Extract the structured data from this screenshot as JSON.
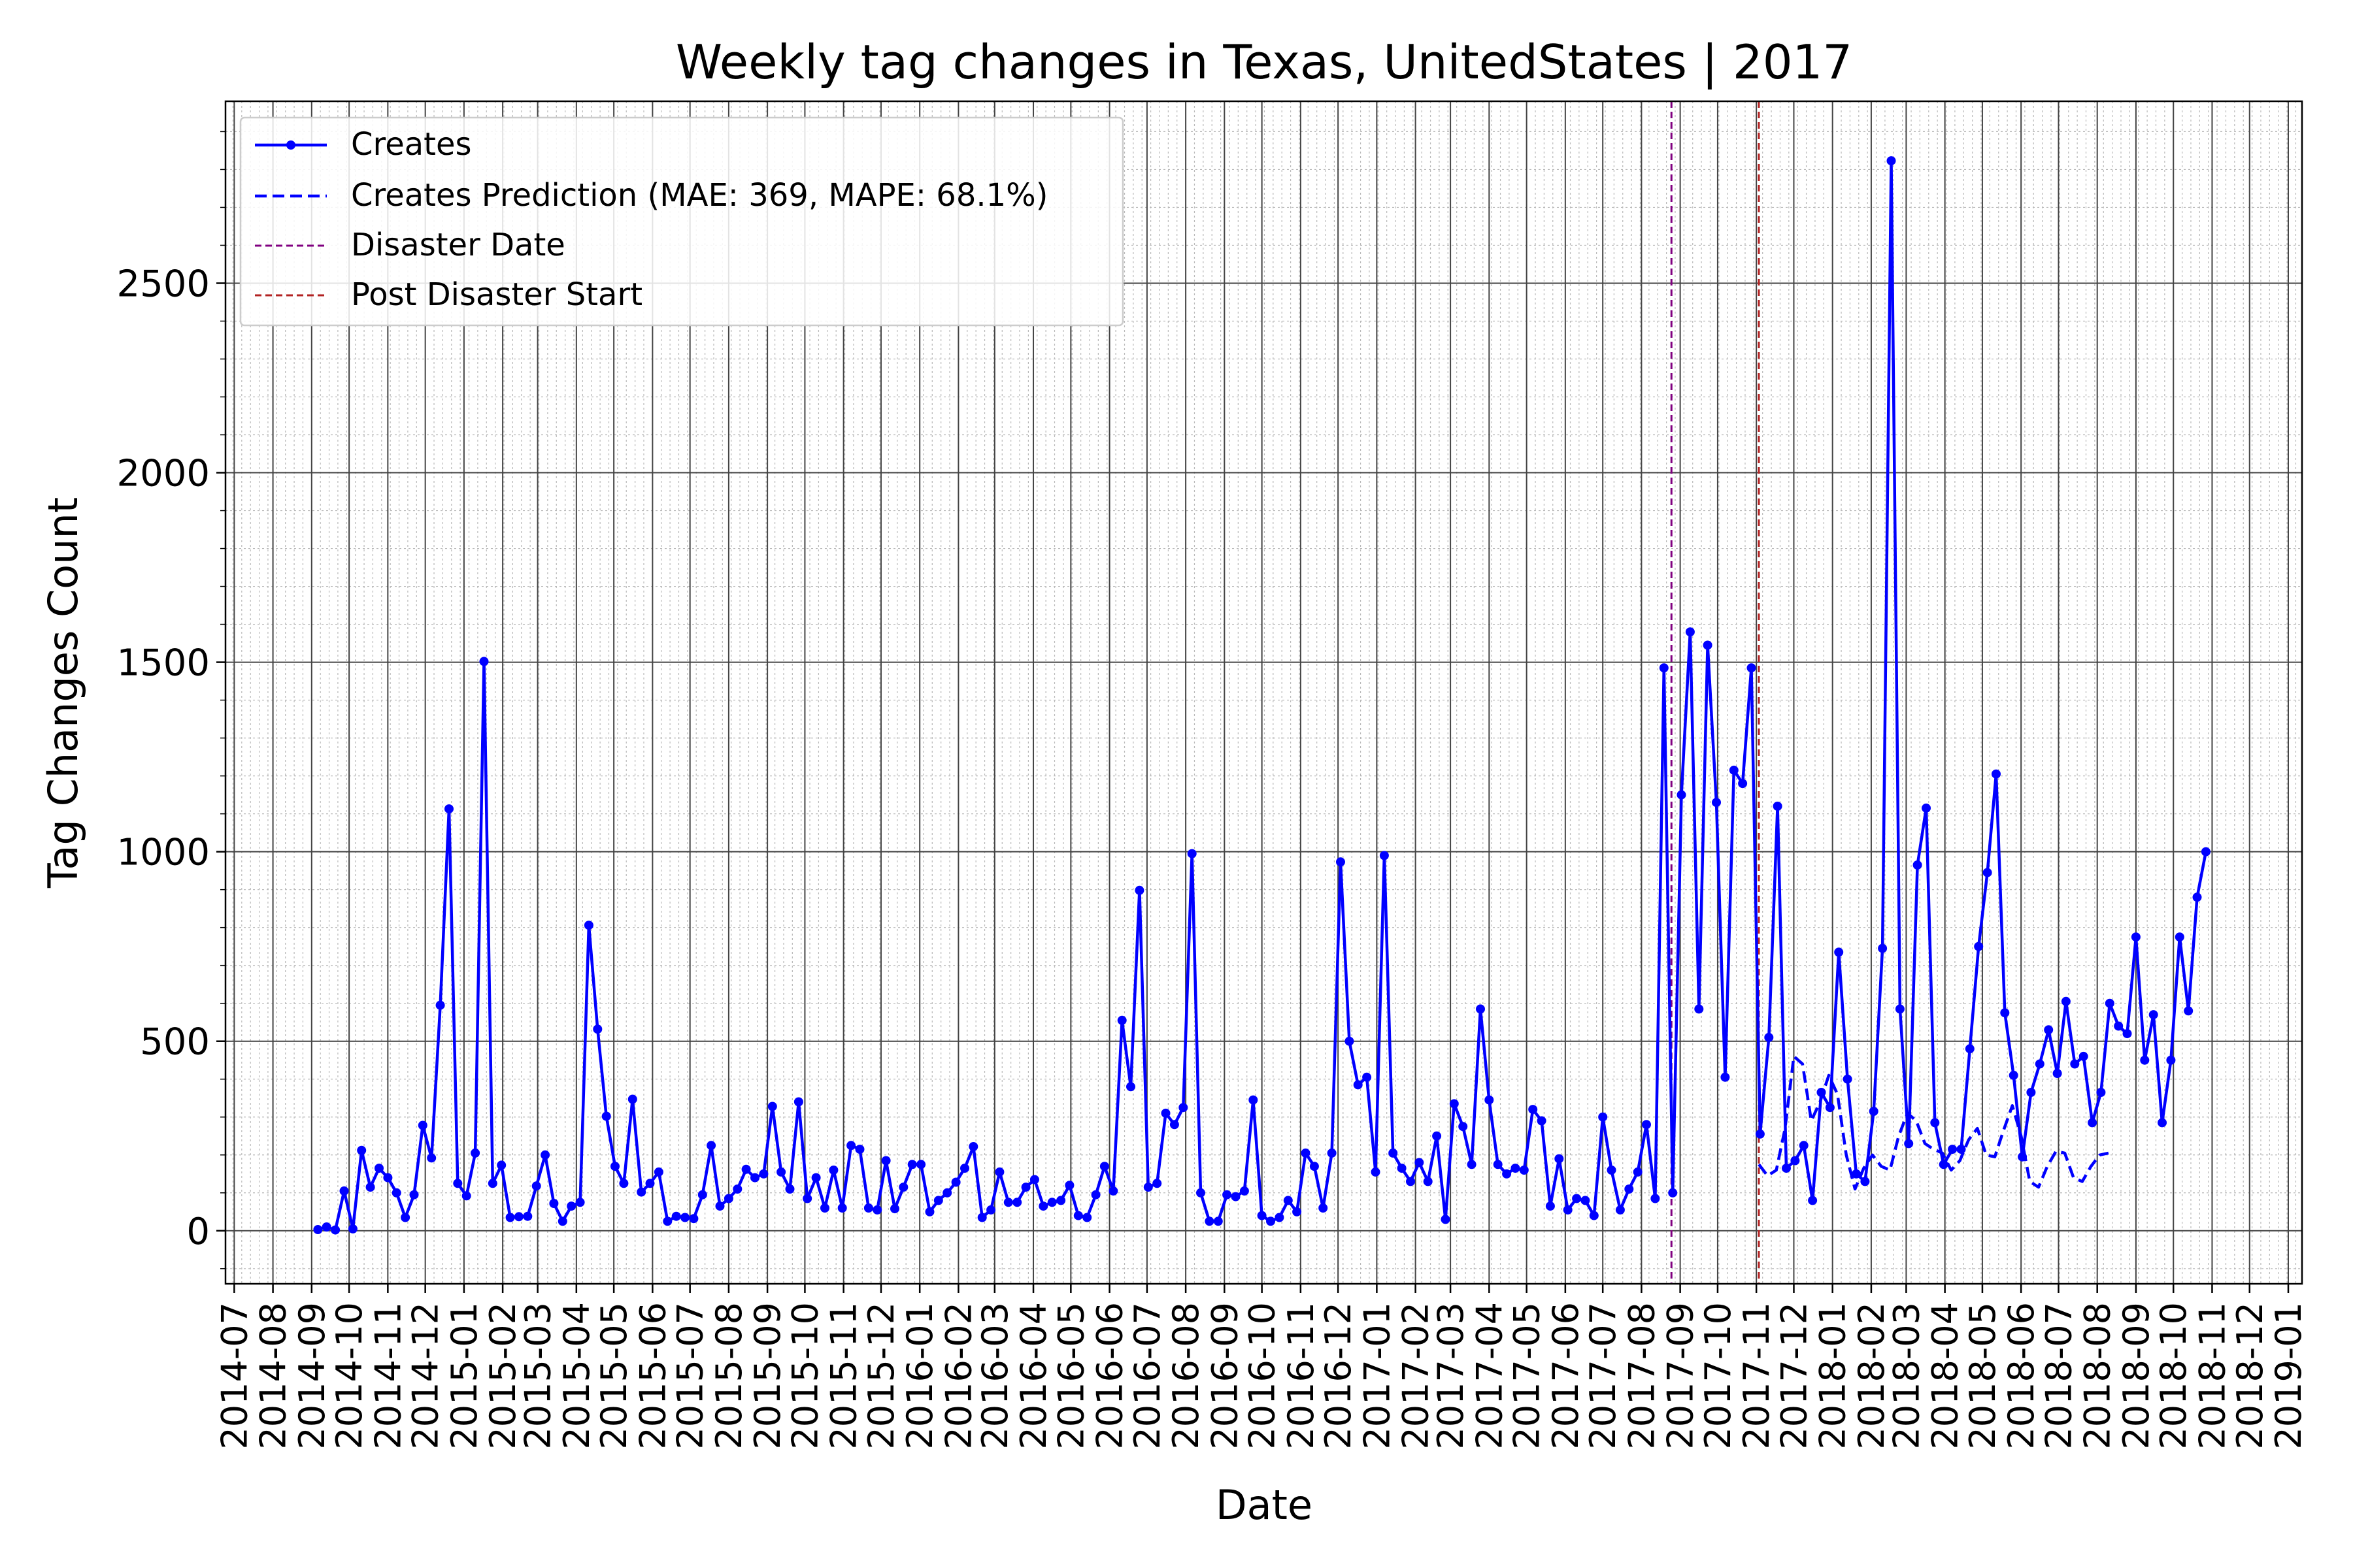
{
  "chart_data": {
    "type": "line",
    "title": "Weekly tag changes in Texas, UnitedStates | 2017",
    "xlabel": "Date",
    "ylabel": "Tag Changes Count",
    "xlim": [
      "2014-06-24",
      "2019-01-12"
    ],
    "ylim": [
      -140,
      2980
    ],
    "yticks": [
      0,
      500,
      1000,
      1500,
      2000,
      2500
    ],
    "xtick_labels": [
      "2014-07",
      "2014-08",
      "2014-09",
      "2014-10",
      "2014-11",
      "2014-12",
      "2015-01",
      "2015-02",
      "2015-03",
      "2015-04",
      "2015-05",
      "2015-06",
      "2015-07",
      "2015-08",
      "2015-09",
      "2015-10",
      "2015-11",
      "2015-12",
      "2016-01",
      "2016-02",
      "2016-03",
      "2016-04",
      "2016-05",
      "2016-06",
      "2016-07",
      "2016-08",
      "2016-09",
      "2016-10",
      "2016-11",
      "2016-12",
      "2017-01",
      "2017-02",
      "2017-03",
      "2017-04",
      "2017-05",
      "2017-06",
      "2017-07",
      "2017-08",
      "2017-09",
      "2017-10",
      "2017-11",
      "2017-12",
      "2018-01",
      "2018-02",
      "2018-03",
      "2018-04",
      "2018-05",
      "2018-06",
      "2018-07",
      "2018-08",
      "2018-09",
      "2018-10",
      "2018-11",
      "2018-12",
      "2019-01"
    ],
    "grid": true,
    "legend_position": "top-left",
    "colors": {
      "creates": "#0000ff",
      "prediction": "#0000ff",
      "disaster": "#800080",
      "post_disaster": "#b22222"
    },
    "vlines": [
      {
        "name": "Disaster Date",
        "date": "2017-08-25"
      },
      {
        "name": "Post Disaster Start",
        "date": "2017-11-03"
      }
    ],
    "series": [
      {
        "name": "Creates",
        "style": "solid-with-markers",
        "x_start": "2014-09-06",
        "x_step_days": 7,
        "y": [
          3,
          10,
          2,
          105,
          5,
          212,
          115,
          165,
          140,
          100,
          35,
          95,
          278,
          192,
          595,
          1113,
          125,
          92,
          205,
          1502,
          125,
          173,
          35,
          37,
          38,
          118,
          200,
          72,
          25,
          65,
          75,
          806,
          532,
          302,
          170,
          125,
          347,
          102,
          125,
          155,
          25,
          38,
          35,
          32,
          95,
          225,
          65,
          85,
          110,
          162,
          140,
          150,
          328,
          155,
          110,
          340,
          85,
          140,
          60,
          160,
          60,
          225,
          215,
          60,
          55,
          185,
          58,
          115,
          175,
          175,
          50,
          80,
          100,
          128,
          165,
          222,
          35,
          55,
          155,
          75,
          75,
          115,
          135,
          65,
          75,
          80,
          120,
          40,
          35,
          95,
          170,
          105,
          555,
          380,
          898,
          115,
          125,
          310,
          280,
          325,
          995,
          100,
          25,
          25,
          95,
          90,
          105,
          345,
          40,
          25,
          35,
          80,
          50,
          205,
          170,
          60,
          205,
          973,
          500,
          385,
          405,
          155,
          990,
          205,
          165,
          130,
          180,
          130,
          250,
          30,
          335,
          275,
          175,
          585,
          345,
          175,
          150,
          165,
          160,
          320,
          290,
          65,
          190,
          55,
          85,
          80,
          40,
          300,
          160,
          55,
          110,
          155,
          280,
          85,
          1485,
          100,
          1150,
          1580,
          585,
          1545,
          1130,
          405,
          1215,
          1180,
          1485,
          255,
          510,
          1120,
          165,
          185,
          225,
          80,
          365,
          325,
          735,
          400,
          150,
          130,
          315,
          745,
          2823,
          585,
          230,
          965,
          1115,
          285,
          175,
          215,
          215,
          480,
          750,
          945,
          1205,
          575,
          410,
          195,
          365,
          440,
          530,
          415,
          605,
          440,
          460,
          285,
          365,
          600,
          540,
          520,
          775,
          450,
          570,
          285,
          450,
          775,
          580,
          880,
          1000
        ]
      },
      {
        "name": "Creates Prediction (MAE: 369, MAPE: 68.1%)",
        "style": "dashed",
        "x_start": "2017-11-03",
        "x_step_days": 7,
        "y": [
          175,
          145,
          160,
          270,
          460,
          440,
          290,
          340,
          410,
          360,
          200,
          110,
          165,
          200,
          170,
          160,
          250,
          310,
          290,
          230,
          215,
          205,
          160,
          185,
          240,
          270,
          200,
          195,
          265,
          330,
          250,
          130,
          115,
          170,
          210,
          205,
          140,
          130,
          170,
          200,
          205
        ]
      }
    ]
  }
}
